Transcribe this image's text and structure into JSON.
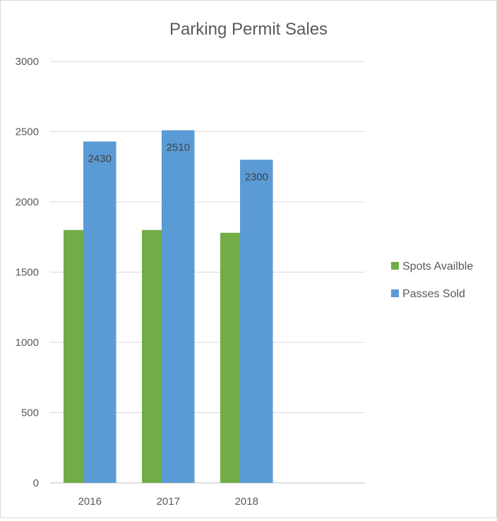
{
  "chart_data": {
    "type": "bar",
    "title": "Parking Permit Sales",
    "categories": [
      "2016",
      "2017",
      "2018"
    ],
    "series": [
      {
        "name": "Spots Availble",
        "color": "#70ad47",
        "values": [
          1800,
          1800,
          1780
        ],
        "show_labels": false
      },
      {
        "name": "Passes Sold",
        "color": "#5b9bd5",
        "values": [
          2430,
          2510,
          2300
        ],
        "show_labels": true
      }
    ],
    "ylim": [
      0,
      3000
    ],
    "yticks": [
      0,
      500,
      1000,
      1500,
      2000,
      2500,
      3000
    ],
    "grid": true,
    "legend_position": "right"
  }
}
